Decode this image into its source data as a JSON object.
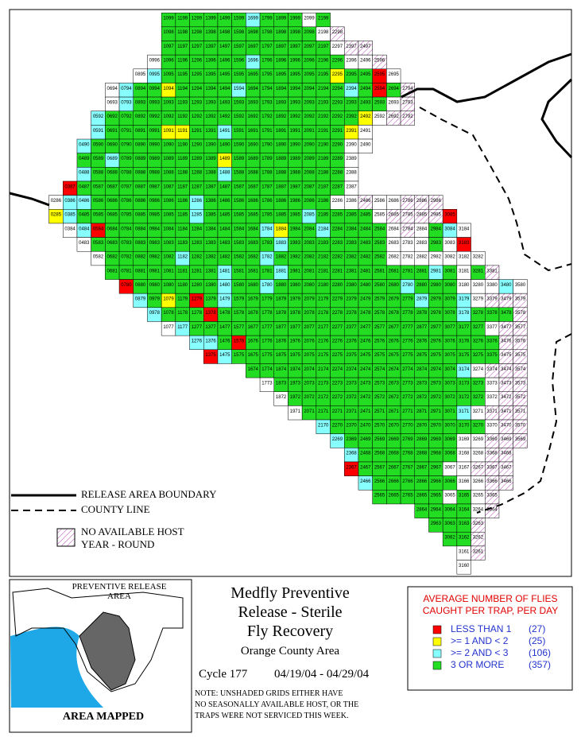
{
  "map": {
    "palette": {
      "g": "#22dd22",
      "c": "#88ffff",
      "y": "#ffff00",
      "r": "#ff0000",
      "w": "#ffffff"
    },
    "rows": [
      {
        "labels": [
          "1099",
          "1199",
          "1299",
          "1399",
          "1499",
          "1599",
          "1699",
          "1799",
          "1899",
          "1999",
          "2099",
          "2199"
        ],
        "status": "ggggggcgggwg"
      },
      {
        "labels": [
          "1098",
          "1198",
          "1298",
          "1398",
          "1498",
          "1598",
          "1698",
          "1798",
          "1898",
          "1998",
          "2098",
          "2198",
          "2298"
        ],
        "status": "gggggggggggwh"
      },
      {
        "labels": [
          "1097",
          "1197",
          "1297",
          "1397",
          "1497",
          "1597",
          "1697",
          "1797",
          "1897",
          "1997",
          "2097",
          "2197",
          "2297",
          "2397",
          "2497"
        ],
        "status": "ggggggggggggwhh"
      },
      {
        "labels": [
          "0996",
          "1096",
          "1196",
          "1296",
          "1396",
          "1496",
          "1596",
          "1696",
          "1796",
          "1896",
          "1996",
          "2096",
          "2196",
          "2296",
          "2396",
          "2496",
          "2596"
        ],
        "status": "wggggggcggggggwwh"
      },
      {
        "labels": [
          "0895",
          "0995",
          "1095",
          "1195",
          "1295",
          "1395",
          "1495",
          "1595",
          "1695",
          "1795",
          "1895",
          "1995",
          "2095",
          "2195",
          "2295",
          "2395",
          "2495",
          "2595",
          "2695"
        ],
        "status": "wcggggggggggggyggrw"
      },
      {
        "labels": [
          "0694",
          "0794",
          "0894",
          "0994",
          "1094",
          "1194",
          "1294",
          "1394",
          "1494",
          "1594",
          "1694",
          "1794",
          "1894",
          "1994",
          "2094",
          "2194",
          "2294",
          "2394",
          "2494",
          "2594",
          "2694",
          "2794"
        ],
        "status": "wcggyggggcgggggggcgrgh"
      },
      {
        "labels": [
          "0693",
          "0793",
          "0893",
          "0993",
          "1093",
          "1193",
          "1293",
          "1393",
          "1493",
          "1593",
          "1693",
          "1793",
          "1893",
          "1993",
          "2093",
          "2193",
          "2293",
          "2393",
          "2493",
          "2593",
          "2693",
          "2793"
        ],
        "status": "wcggggggggggggggggggwh"
      },
      {
        "labels": [
          "0592",
          "0692",
          "0792",
          "0892",
          "0992",
          "1092",
          "1192",
          "1292",
          "1392",
          "1492",
          "1592",
          "1692",
          "1792",
          "1892",
          "1992",
          "2092",
          "2192",
          "2292",
          "2392",
          "2492",
          "2592",
          "2692",
          "2792"
        ],
        "status": "cggggggggggggggggggywhh"
      },
      {
        "labels": [
          "0591",
          "0691",
          "0791",
          "0891",
          "0991",
          "1091",
          "1191",
          "1291",
          "1391",
          "1491",
          "1591",
          "1691",
          "1791",
          "1891",
          "1991",
          "2091",
          "2191",
          "2291",
          "2391",
          "2491"
        ],
        "status": "cggggyyggcggggggggyw"
      },
      {
        "labels": [
          "0490",
          "0590",
          "0690",
          "0790",
          "0890",
          "0990",
          "1090",
          "1190",
          "1290",
          "1390",
          "1490",
          "1590",
          "1690",
          "1790",
          "1890",
          "1990",
          "2090",
          "2190",
          "2290",
          "2390",
          "2490"
        ],
        "status": "cggggggggggggggggggww"
      },
      {
        "labels": [
          "0489",
          "0589",
          "0689",
          "0789",
          "0889",
          "0989",
          "1089",
          "1189",
          "1289",
          "1389",
          "1489",
          "1589",
          "1689",
          "1789",
          "1889",
          "1989",
          "2089",
          "2189",
          "2289",
          "2389"
        ],
        "status": "ggcgggggggyggggggggw"
      },
      {
        "labels": [
          "0488",
          "0588",
          "0688",
          "0788",
          "0888",
          "0988",
          "1088",
          "1188",
          "1288",
          "1388",
          "1488",
          "1588",
          "1688",
          "1788",
          "1888",
          "1988",
          "2088",
          "2188",
          "2288",
          "2388"
        ],
        "status": "cgggggggggcggggggggw"
      },
      {
        "labels": [
          "0387",
          "0487",
          "0587",
          "0687",
          "0787",
          "0887",
          "0987",
          "1087",
          "1187",
          "1287",
          "1387",
          "1487",
          "1587",
          "1687",
          "1787",
          "1887",
          "1987",
          "2087",
          "2187",
          "2287",
          "2387"
        ],
        "status": "rgggggggggggggggggggw"
      },
      {
        "labels": [
          "0286",
          "0386",
          "0486",
          "0586",
          "0686",
          "0786",
          "0886",
          "0986",
          "1086",
          "1186",
          "1286",
          "1386",
          "1486",
          "1586",
          "1686",
          "1786",
          "1886",
          "1986",
          "2086",
          "2186",
          "2286",
          "2386",
          "2486",
          "2586",
          "2686",
          "2786",
          "2886",
          "2986"
        ],
        "status": "wccgggggggcgggggggggwwhwwhhh"
      },
      {
        "labels": [
          "0285",
          "0385",
          "0485",
          "0585",
          "0685",
          "0785",
          "0885",
          "0985",
          "1085",
          "1185",
          "1285",
          "1385",
          "1485",
          "1585",
          "1685",
          "1785",
          "1885",
          "1985",
          "2085",
          "2185",
          "2285",
          "2385",
          "2485",
          "2585",
          "2685",
          "2785",
          "2885",
          "2985",
          "3085"
        ],
        "status": "ycggggggggcgggggggcggggwhhhhr"
      },
      {
        "labels": [
          "0384",
          "0484",
          "0584",
          "0684",
          "0784",
          "0884",
          "0984",
          "1084",
          "1184",
          "1284",
          "1384",
          "1484",
          "1584",
          "1684",
          "1784",
          "1884",
          "1984",
          "2084",
          "2184",
          "2284",
          "2384",
          "2484",
          "2584",
          "2684",
          "2784",
          "2884",
          "2984",
          "3084",
          "3184"
        ],
        "status": "wcrgggggggggggcyggcggggwhwgcw"
      },
      {
        "labels": [
          "0483",
          "0583",
          "0683",
          "0783",
          "0883",
          "0983",
          "1083",
          "1183",
          "1283",
          "1383",
          "1483",
          "1583",
          "1683",
          "1783",
          "1883",
          "1983",
          "2083",
          "2183",
          "2283",
          "2383",
          "2483",
          "2583",
          "2683",
          "2783",
          "2883",
          "2983",
          "3083",
          "3183"
        ],
        "status": "wgggggggggggggcgggggggwwwgwr"
      },
      {
        "labels": [
          "0582",
          "0682",
          "0782",
          "0882",
          "0982",
          "1082",
          "1182",
          "1282",
          "1382",
          "1482",
          "1582",
          "1682",
          "1782",
          "1882",
          "1982",
          "2082",
          "2182",
          "2282",
          "2382",
          "2482",
          "2582",
          "2682",
          "2782",
          "2882",
          "2982",
          "3082",
          "3182",
          "3282"
        ],
        "status": "wgggggcgggggcggggggggwwwwwww"
      },
      {
        "labels": [
          "0681",
          "0781",
          "0881",
          "0981",
          "1081",
          "1181",
          "1281",
          "1381",
          "1481",
          "1581",
          "1681",
          "1781",
          "1881",
          "1981",
          "2081",
          "2181",
          "2281",
          "2381",
          "2481",
          "2581",
          "2681",
          "2781",
          "2881",
          "2981",
          "3081",
          "3181",
          "3281",
          "3381"
        ],
        "status": "ggggggggcgggcggggggggggcgwgh"
      },
      {
        "labels": [
          "0780",
          "0880",
          "0980",
          "1080",
          "1180",
          "1280",
          "1380",
          "1480",
          "1580",
          "1680",
          "1780",
          "1880",
          "1980",
          "2080",
          "2180",
          "2280",
          "2380",
          "2480",
          "2580",
          "2680",
          "2780",
          "2880",
          "2980",
          "3080",
          "3180",
          "3280",
          "3380",
          "3480",
          "3580"
        ],
        "status": "rggggggcggcgggggggggcgggwwwcw"
      },
      {
        "labels": [
          "0879",
          "0979",
          "1079",
          "1179",
          "1279",
          "1379",
          "1479",
          "1579",
          "1679",
          "1779",
          "1879",
          "1979",
          "2079",
          "2179",
          "2279",
          "2379",
          "2479",
          "2579",
          "2679",
          "2779",
          "2879",
          "2979",
          "3079",
          "3179",
          "3279",
          "3379",
          "3479",
          "3579"
        ],
        "status": "cgygrgcgggggggggggggcggcwhhh"
      },
      {
        "labels": [
          "0978",
          "1078",
          "1178",
          "1278",
          "1378",
          "1478",
          "1578",
          "1678",
          "1778",
          "1878",
          "1978",
          "2078",
          "2178",
          "2278",
          "2378",
          "2478",
          "2578",
          "2678",
          "2778",
          "2878",
          "2978",
          "3078",
          "3178",
          "3278",
          "3378",
          "3478",
          "3578"
        ],
        "status": "cgggrgggggggggggggggggcgggh"
      },
      {
        "labels": [
          "1077",
          "1177",
          "1277",
          "1377",
          "1477",
          "1577",
          "1677",
          "1777",
          "1877",
          "1977",
          "2077",
          "2177",
          "2277",
          "2377",
          "2477",
          "2577",
          "2677",
          "2777",
          "2877",
          "2977",
          "3077",
          "3177",
          "3277",
          "3377",
          "3477",
          "3577"
        ],
        "status": "wcgggggggggggggggggggggwhh"
      },
      {
        "labels": [
          "1276",
          "1376",
          "1476",
          "1576",
          "1676",
          "1776",
          "1876",
          "1976",
          "2076",
          "2176",
          "2276",
          "2376",
          "2476",
          "2576",
          "2676",
          "2776",
          "2876",
          "2976",
          "3076",
          "3176",
          "3276",
          "3376",
          "3476",
          "3576"
        ],
        "status": "ccgrgggggggggggggggggghh"
      },
      {
        "labels": [
          "1375",
          "1475",
          "1575",
          "1675",
          "1775",
          "1875",
          "1975",
          "2075",
          "2175",
          "2275",
          "2375",
          "2475",
          "2575",
          "2675",
          "2775",
          "2875",
          "2975",
          "3075",
          "3175",
          "3275",
          "3375",
          "3475",
          "3575"
        ],
        "status": "rcggggggggggggggggggghh"
      },
      {
        "labels": [
          "1674",
          "1774",
          "1874",
          "1974",
          "2074",
          "2174",
          "2274",
          "2374",
          "2474",
          "2574",
          "2674",
          "2774",
          "2874",
          "2974",
          "3074",
          "3174",
          "3274",
          "3374",
          "3474",
          "3574"
        ],
        "status": "gggggggggggggggcwhhh"
      },
      {
        "labels": [
          "1773",
          "1873",
          "1973",
          "2073",
          "2173",
          "2273",
          "2373",
          "2473",
          "2573",
          "2673",
          "2773",
          "2873",
          "2973",
          "3073",
          "3173",
          "3273",
          "3373",
          "3473",
          "3573"
        ],
        "status": "wgggggggggggggggwhh"
      },
      {
        "labels": [
          "1872",
          "1972",
          "2072",
          "2172",
          "2272",
          "2372",
          "2472",
          "2572",
          "2672",
          "2772",
          "2872",
          "2972",
          "3072",
          "3172",
          "3272",
          "3372",
          "3472",
          "3572"
        ],
        "status": "wggggggggggggggwhh"
      },
      {
        "labels": [
          "1971",
          "2071",
          "2171",
          "2271",
          "2371",
          "2471",
          "2571",
          "2671",
          "2771",
          "2871",
          "2971",
          "3071",
          "3171",
          "3271",
          "3371",
          "3471",
          "3571"
        ],
        "status": "wgggggggggggcwhhh"
      },
      {
        "labels": [
          "2170",
          "2270",
          "2370",
          "2470",
          "2570",
          "2670",
          "2770",
          "2870",
          "2970",
          "3070",
          "3170",
          "3270",
          "3370",
          "3470",
          "3570"
        ],
        "status": "cgggggggggggwhh"
      },
      {
        "labels": [
          "2269",
          "2369",
          "2469",
          "2569",
          "2669",
          "2769",
          "2869",
          "2969",
          "3069",
          "3169",
          "3269",
          "3369",
          "3469",
          "3569"
        ],
        "status": "cggggggggwwhhh"
      },
      {
        "labels": [
          "2368",
          "2468",
          "2568",
          "2668",
          "2768",
          "2868",
          "2968",
          "3068",
          "3168",
          "3268",
          "3368",
          "3468"
        ],
        "status": "cgggggggwwhh"
      },
      {
        "labels": [
          "2367",
          "2467",
          "2567",
          "2667",
          "2767",
          "2867",
          "2967",
          "3067",
          "3167",
          "3267",
          "3367",
          "3467"
        ],
        "status": "rggggggwwhhh"
      },
      {
        "labels": [
          "2466",
          "2566",
          "2666",
          "2766",
          "2866",
          "2966",
          "3066",
          "3166",
          "3266",
          "3366",
          "3466"
        ],
        "status": "cggggggwwhh"
      },
      {
        "labels": [
          "2565",
          "2665",
          "2765",
          "2865",
          "2965",
          "3065",
          "3165",
          "3265",
          "3365"
        ],
        "status": "gggggwgwh"
      },
      {
        "labels": [
          "2864",
          "2964",
          "3064",
          "3164",
          "3264",
          "3364"
        ],
        "status": "ggggwh"
      },
      {
        "labels": [
          "2963",
          "3063",
          "3163",
          "3263"
        ],
        "status": "gggh"
      },
      {
        "labels": [
          "3062",
          "3162",
          "3262"
        ],
        "status": "ggh"
      },
      {
        "labels": [
          "3161",
          "3261"
        ],
        "status": "wh"
      },
      {
        "labels": [
          "3160"
        ],
        "status": "w"
      }
    ]
  },
  "map_legend": {
    "boundary": "RELEASE AREA BOUNDARY",
    "county": "COUNTY LINE",
    "no_host": [
      "NO AVAILABLE HOST",
      "YEAR - ROUND"
    ]
  },
  "inset": {
    "title": [
      "PREVENTIVE RELEASE",
      "AREA"
    ],
    "caption": "AREA MAPPED"
  },
  "title": [
    "Medfly Preventive",
    "Release - Sterile",
    "Fly Recovery"
  ],
  "area": "Orange County Area",
  "cycle": "Cycle 177",
  "dates": "04/19/04 - 04/29/04",
  "note": [
    "NOTE: UNSHADED GRIDS EITHER HAVE",
    "NO SEASONALLY AVAILABLE HOST, OR THE",
    "TRAPS WERE NOT SERVICED THIS WEEK."
  ],
  "legend": {
    "title": [
      "AVERAGE NUMBER OF FLIES",
      "CAUGHT PER TRAP, PER DAY"
    ],
    "items": [
      {
        "label": "LESS THAN 1",
        "count": "(27)",
        "color": "#ff0000"
      },
      {
        "label": ">= 1 AND < 2",
        "count": "(25)",
        "color": "#ffff00"
      },
      {
        "label": ">= 2 AND < 3",
        "count": "(106)",
        "color": "#88ffff"
      },
      {
        "label": "3 OR MORE",
        "count": "(357)",
        "color": "#22dd22"
      }
    ]
  }
}
